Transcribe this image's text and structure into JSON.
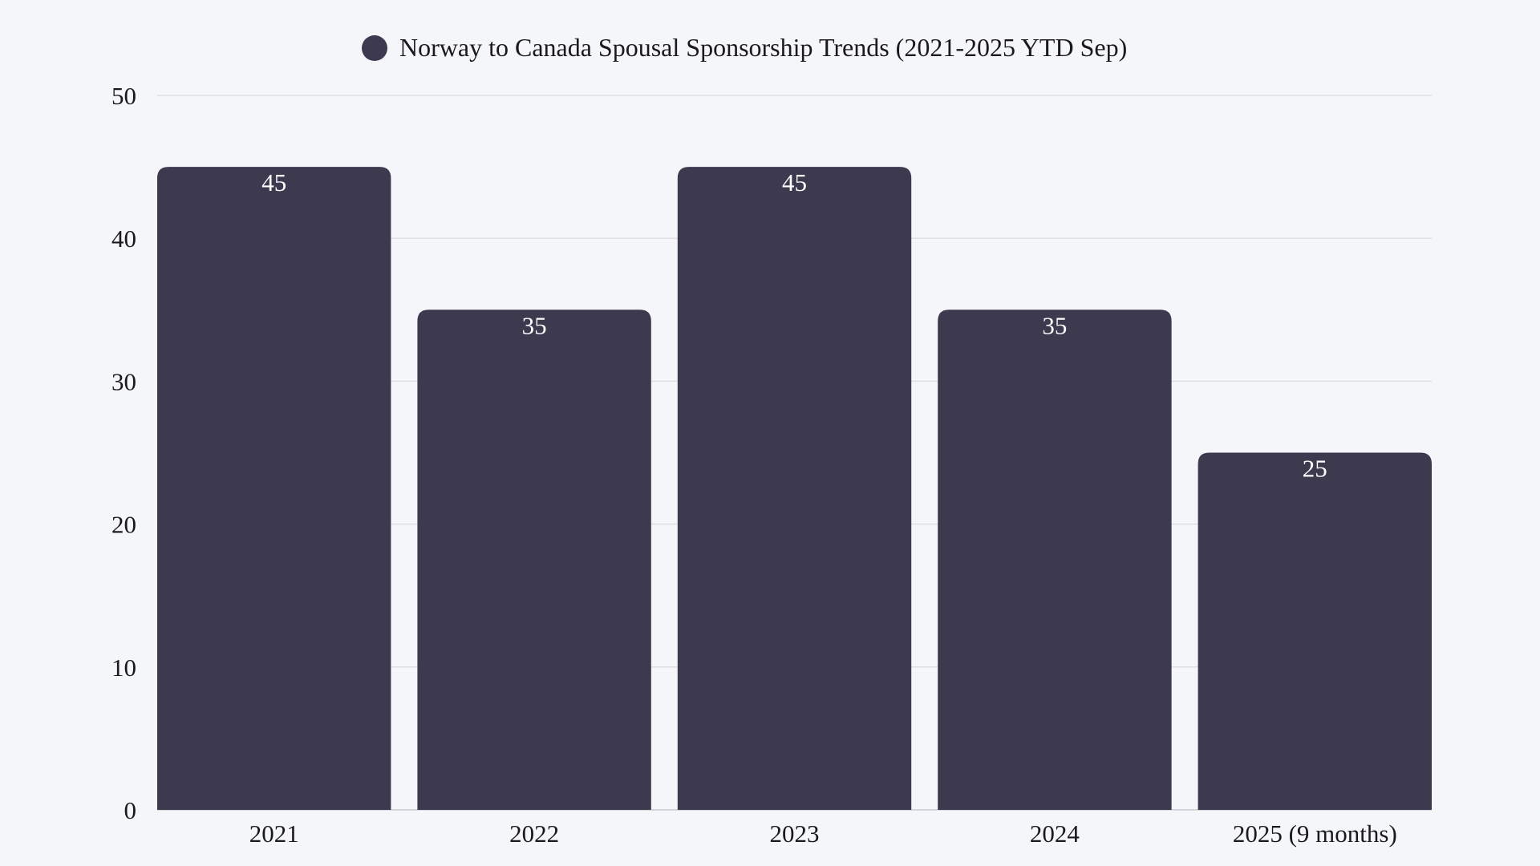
{
  "chart_data": {
    "type": "bar",
    "legend": {
      "label": "Norway to Canada Spousal Sponsorship Trends (2021-2025 YTD Sep)",
      "placement": "top"
    },
    "categories": [
      "2021",
      "2022",
      "2023",
      "2024",
      "2025 (9 months)"
    ],
    "series": [
      {
        "name": "Norway to Canada Spousal Sponsorship Trends (2021-2025 YTD Sep)",
        "values": [
          45,
          35,
          45,
          35,
          25
        ]
      }
    ],
    "ylim": [
      0,
      50
    ],
    "yticks": [
      0,
      10,
      20,
      30,
      40,
      50
    ],
    "grid": true,
    "data_labels": true,
    "colors": {
      "bar": "#3d3a50",
      "grid": "#dedfe3",
      "background": "#f5f6f9"
    }
  }
}
